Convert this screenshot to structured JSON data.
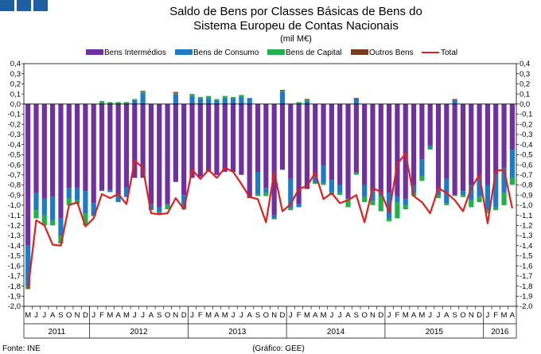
{
  "chart_data": {
    "type": "bar",
    "title_lines": [
      "Saldo de Bens por Classes Básicas de Bens do",
      "Sistema Europeu de Contas Nacionais"
    ],
    "unit": "(mil M€)",
    "ylim": [
      -2.0,
      0.4
    ],
    "yticks": [
      "0,4",
      "0,3",
      "0,2",
      "0,1",
      "0,0",
      "-0,1",
      "-0,2",
      "-0,3",
      "-0,4",
      "-0,5",
      "-0,6",
      "-0,7",
      "-0,8",
      "-0,9",
      "-1,0",
      "-1,1",
      "-1,2",
      "-1,3",
      "-1,4",
      "-1,5",
      "-1,6",
      "-1,7",
      "-1,8",
      "-1,9",
      "-2,0"
    ],
    "legend": [
      "Bens Intermédios",
      "Bens de Consumo",
      "Bens de Capital",
      "Outros Bens",
      "Total"
    ],
    "legend_position": "top",
    "colors": {
      "intermedios": "#7030a0",
      "consumo": "#1f7ac5",
      "capital": "#22b04a",
      "outros": "#7a3c1d",
      "total": "#e02020"
    },
    "months": [
      "M",
      "J",
      "J",
      "A",
      "S",
      "O",
      "N",
      "D",
      "J",
      "F",
      "M",
      "A",
      "M",
      "J",
      "J",
      "A",
      "S",
      "O",
      "N",
      "D",
      "J",
      "F",
      "M",
      "A",
      "M",
      "J",
      "J",
      "A",
      "S",
      "O",
      "N",
      "D",
      "J",
      "F",
      "M",
      "A",
      "M",
      "J",
      "J",
      "A",
      "S",
      "O",
      "N",
      "D",
      "J",
      "F",
      "M",
      "A",
      "M",
      "J",
      "J",
      "A",
      "S",
      "O",
      "N",
      "D",
      "J",
      "F",
      "M",
      "A"
    ],
    "years": [
      {
        "label": "2011",
        "start": 0,
        "end": 7
      },
      {
        "label": "2012",
        "start": 8,
        "end": 19
      },
      {
        "label": "2013",
        "start": 20,
        "end": 31
      },
      {
        "label": "2014",
        "start": 32,
        "end": 43
      },
      {
        "label": "2015",
        "start": 44,
        "end": 55
      },
      {
        "label": "2016",
        "start": 56,
        "end": 59
      }
    ],
    "series": [
      {
        "name": "Bens Intermédios",
        "values": [
          -1.4,
          -0.88,
          -0.93,
          -0.92,
          -1.13,
          -0.83,
          -0.83,
          -0.86,
          -0.98,
          -0.85,
          -0.85,
          -0.9,
          -0.82,
          -0.73,
          -0.73,
          -0.99,
          -1.02,
          -0.99,
          -0.77,
          -0.9,
          -0.73,
          -0.72,
          -0.67,
          -0.7,
          -0.67,
          -0.67,
          -0.7,
          -0.93,
          -0.67,
          -0.83,
          -1.1,
          -0.65,
          -0.74,
          -0.99,
          -0.84,
          -0.72,
          -0.61,
          -0.75,
          -0.8,
          -0.93,
          -0.68,
          -0.8,
          -0.86,
          -0.88,
          -0.88,
          -0.91,
          -0.94,
          -0.8,
          -0.55,
          -0.41,
          -0.85,
          -0.74,
          -0.9,
          -0.86,
          -0.8,
          -0.71,
          -0.8,
          -0.69,
          -0.63,
          -0.45
        ]
      },
      {
        "name": "Bens de Consumo",
        "values": [
          -0.4,
          -0.17,
          -0.17,
          -0.23,
          -0.17,
          -0.1,
          -0.12,
          -0.22,
          -0.12,
          -0.01,
          -0.02,
          -0.07,
          -0.1,
          0.04,
          0.11,
          -0.05,
          -0.05,
          -0.01,
          0.1,
          -0.13,
          0.08,
          0.06,
          0.06,
          0.04,
          0.06,
          0.06,
          0.07,
          0.06,
          -0.22,
          -0.05,
          -0.03,
          0.12,
          -0.29,
          -0.03,
          0.03,
          -0.06,
          -0.17,
          -0.12,
          -0.08,
          -0.01,
          0.05,
          -0.12,
          -0.1,
          -0.03,
          -0.25,
          -0.06,
          -0.06,
          -0.08,
          -0.16,
          -0.02,
          -0.05,
          -0.24,
          0.04,
          -0.04,
          -0.15,
          -0.21,
          -0.25,
          -0.33,
          -0.25,
          -0.28
        ]
      },
      {
        "name": "Bens de Capital",
        "values": [
          -0.03,
          -0.08,
          -0.1,
          -0.05,
          -0.08,
          -0.07,
          -0.04,
          -0.12,
          -0.01,
          0.03,
          0.02,
          0.02,
          0.02,
          0.01,
          0.01,
          -0.01,
          -0.02,
          -0.04,
          0.01,
          -0.01,
          0.02,
          0.01,
          0.02,
          0.01,
          0.02,
          0.01,
          0.02,
          0.0,
          -0.02,
          -0.03,
          -0.01,
          0.01,
          -0.02,
          0.02,
          0.01,
          -0.01,
          -0.02,
          -0.03,
          -0.02,
          -0.08,
          -0.02,
          -0.05,
          -0.04,
          -0.15,
          -0.03,
          -0.16,
          -0.04,
          -0.03,
          -0.05,
          -0.02,
          -0.03,
          -0.02,
          -0.01,
          -0.02,
          -0.07,
          -0.05,
          -0.03,
          -0.03,
          -0.12,
          -0.07
        ]
      },
      {
        "name": "Outros Bens",
        "values": [
          0.0,
          0.0,
          0.0,
          0.0,
          0.0,
          0.0,
          0.0,
          0.0,
          0.0,
          0.0,
          0.0,
          0.0,
          0.0,
          0.0,
          0.01,
          0.0,
          0.0,
          0.0,
          0.01,
          0.0,
          0.0,
          0.0,
          0.0,
          0.0,
          0.0,
          0.0,
          0.0,
          0.0,
          0.0,
          0.0,
          0.0,
          0.01,
          0.0,
          0.0,
          0.01,
          0.0,
          0.0,
          0.0,
          0.0,
          0.0,
          0.01,
          0.0,
          0.0,
          0.0,
          0.0,
          0.0,
          0.0,
          0.0,
          0.0,
          0.0,
          0.0,
          0.0,
          0.01,
          0.0,
          0.0,
          0.0,
          0.0,
          0.0,
          0.0,
          0.0
        ]
      },
      {
        "name": "Total",
        "values": [
          -1.83,
          -1.15,
          -1.2,
          -1.39,
          -1.4,
          -1.0,
          -0.97,
          -1.21,
          -1.13,
          -0.89,
          -0.93,
          -0.89,
          -0.99,
          -0.56,
          -0.63,
          -1.08,
          -1.09,
          -1.08,
          -0.93,
          -1.04,
          -0.65,
          -0.74,
          -0.65,
          -0.73,
          -0.63,
          -0.67,
          -0.79,
          -0.92,
          -0.94,
          -1.17,
          -0.67,
          -1.06,
          -0.99,
          -0.84,
          -0.81,
          -0.68,
          -0.94,
          -0.88,
          -0.98,
          -0.95,
          -0.9,
          -1.17,
          -0.83,
          -0.87,
          -1.07,
          -0.59,
          -0.49,
          -0.91,
          -0.97,
          -1.08,
          -0.83,
          -0.88,
          -0.95,
          -1.06,
          -0.83,
          -0.7,
          -1.18,
          -0.66,
          -0.65,
          -1.03
        ]
      }
    ]
  },
  "footer": {
    "source": "Fonte: INE",
    "credit": "(Gráfico: GEE)"
  }
}
